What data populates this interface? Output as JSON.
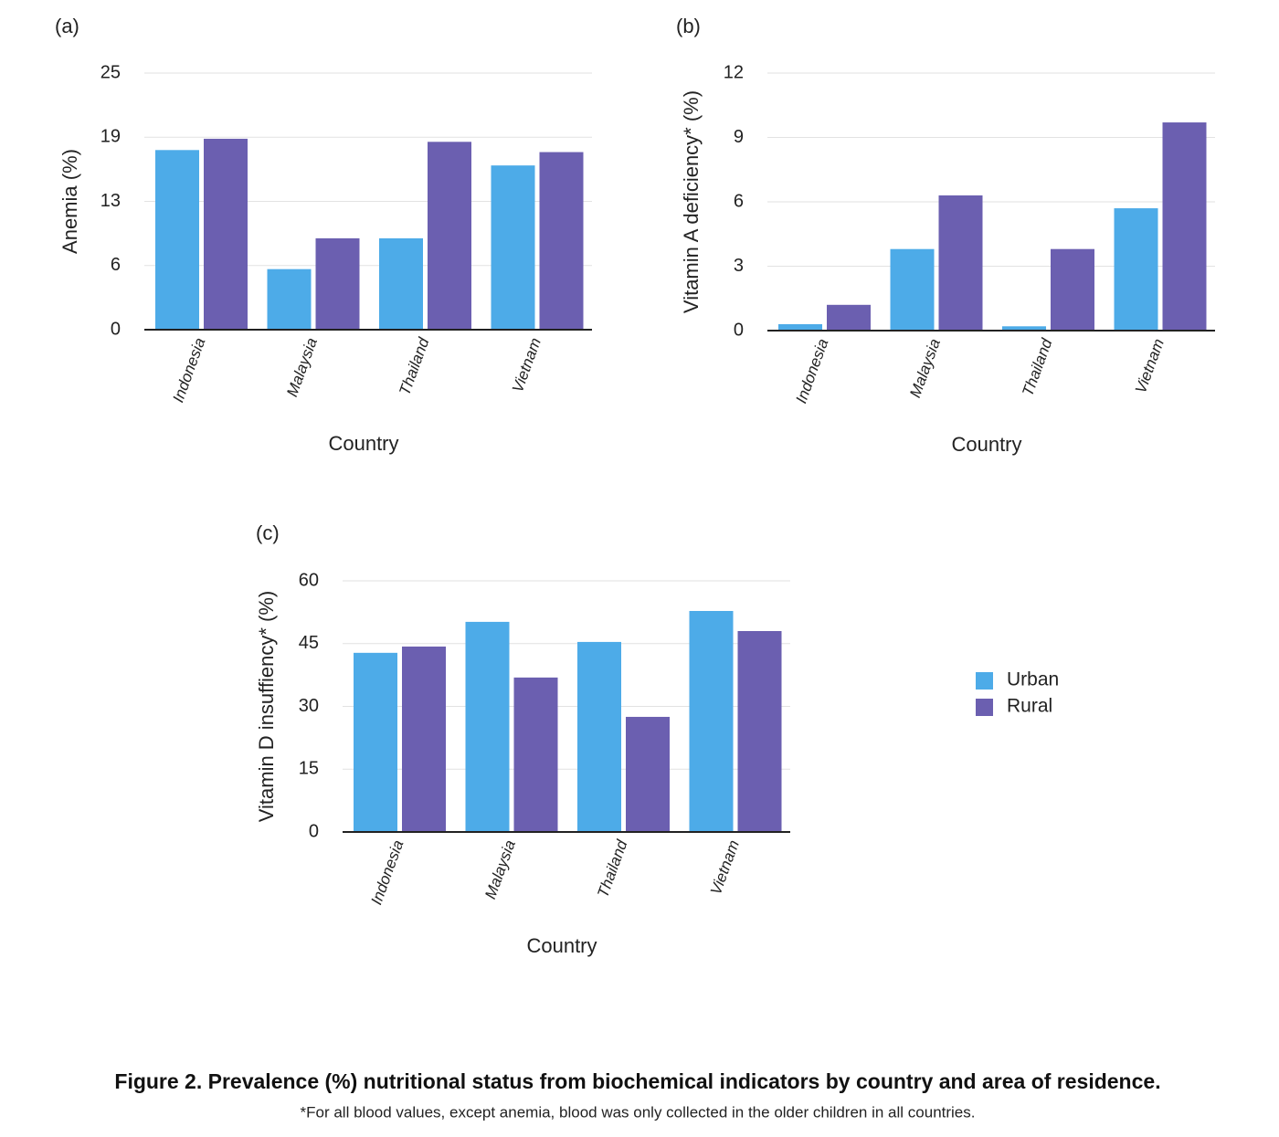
{
  "chart_data": [
    {
      "type": "bar",
      "label": "(a)",
      "y_label": "Anemia (%)",
      "x_label": "Country",
      "categories": [
        "Indonesia",
        "Malaysia",
        "Thailand",
        "Vietnam"
      ],
      "series": [
        {
          "color": "#4dabe8",
          "values": [
            17.5,
            5.9,
            8.9,
            16.0
          ]
        },
        {
          "color": "#6b5fb0",
          "values": [
            18.6,
            8.9,
            18.3,
            17.3
          ]
        }
      ],
      "ylim": [
        0,
        25
      ],
      "yticks": [
        0,
        {
          "value": 6.25,
          "label": "6"
        },
        {
          "value": 12.5,
          "label": "13"
        },
        {
          "value": 18.75,
          "label": "19"
        },
        25
      ],
      "grid": true
    },
    {
      "type": "bar",
      "label": "(b)",
      "y_label": "Vitamin A deficiency* (%)",
      "x_label": "Country",
      "categories": [
        "Indonesia",
        "Malaysia",
        "Thailand",
        "Vietnam"
      ],
      "series": [
        {
          "color": "#4dabe8",
          "values": [
            0.3,
            3.8,
            0.2,
            5.7
          ]
        },
        {
          "color": "#6b5fb0",
          "values": [
            1.2,
            6.3,
            3.8,
            9.7
          ]
        }
      ],
      "ylim": [
        0,
        12
      ],
      "yticks": [
        0,
        3,
        6,
        9,
        12
      ],
      "grid": true
    },
    {
      "type": "bar",
      "label": "(c)",
      "y_label": "Vitamin D insuffiency* (%)",
      "x_label": "Country",
      "categories": [
        "Indonesia",
        "Malaysia",
        "Thailand",
        "Vietnam"
      ],
      "series": [
        {
          "name": "Urban",
          "color": "#4dabe8",
          "values": [
            42.8,
            50.2,
            45.4,
            52.8
          ]
        },
        {
          "name": "Rural",
          "color": "#6b5fb0",
          "values": [
            44.3,
            36.9,
            27.5,
            48.0
          ]
        }
      ],
      "ylim": [
        0,
        60
      ],
      "yticks": [
        0,
        15,
        30,
        45,
        60
      ],
      "grid": true,
      "legend": "right"
    }
  ],
  "caption": "Figure 2. Prevalence (%) nutritional status from biochemical indicators by country and area of residence.",
  "footnote": "*For all blood values, except anemia, blood was only collected in the older children in all countries."
}
